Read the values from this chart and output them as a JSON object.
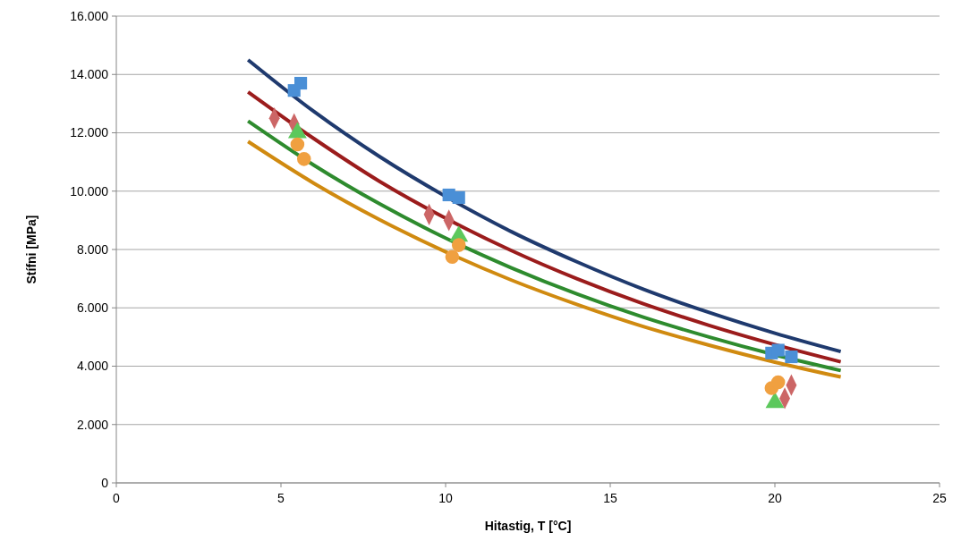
{
  "chart_data": {
    "type": "scatter",
    "xlabel": "Hitastig, T [°C]",
    "ylabel": "Stífni [MPa]",
    "xlim": [
      0,
      25
    ],
    "xticks": [
      0,
      5,
      10,
      15,
      20,
      25
    ],
    "ylim": [
      0,
      16000
    ],
    "yticks": [
      0,
      {
        "value": 2000,
        "label": "2.000"
      },
      {
        "value": 4000,
        "label": "4.000"
      },
      {
        "value": 6000,
        "label": "6.000"
      },
      {
        "value": 8000,
        "label": "8.000"
      },
      {
        "value": 10000,
        "label": "10.000"
      },
      {
        "value": 12000,
        "label": "12.000"
      },
      {
        "value": 14000,
        "label": "14.000"
      },
      {
        "value": 16000,
        "label": "16.000"
      }
    ],
    "grid": "y",
    "series": [
      {
        "type": "line",
        "color": "#1f3a6e",
        "marker": "none",
        "x": [
          4,
          6,
          8,
          10,
          12,
          14,
          16,
          18,
          20,
          22
        ],
        "values": [
          14500,
          12730,
          11180,
          9820,
          8610,
          7570,
          6640,
          5840,
          5130,
          4500
        ]
      },
      {
        "type": "line",
        "color": "#9b1c1c",
        "marker": "none",
        "x": [
          4,
          6,
          8,
          10,
          12,
          14,
          16,
          18,
          20,
          22
        ],
        "values": [
          13400,
          11800,
          10330,
          9070,
          7960,
          6990,
          6140,
          5400,
          4740,
          4150
        ]
      },
      {
        "type": "line",
        "color": "#2e8b2e",
        "marker": "none",
        "x": [
          4,
          6,
          8,
          10,
          12,
          14,
          16,
          18,
          20,
          22
        ],
        "values": [
          12400,
          10890,
          9560,
          8390,
          7370,
          6470,
          5680,
          5000,
          4390,
          3850
        ]
      },
      {
        "type": "line",
        "color": "#d08a10",
        "marker": "none",
        "x": [
          4,
          6,
          8,
          10,
          12,
          14,
          16,
          18,
          20,
          22
        ],
        "values": [
          11700,
          10270,
          9020,
          7920,
          6950,
          6110,
          5360,
          4720,
          4140,
          3630
        ]
      },
      {
        "color": "#4a8fd6",
        "marker": "square",
        "x": [
          5.4,
          5.6,
          10.1,
          10.4,
          19.9,
          20.1,
          20.5
        ],
        "values": [
          13450,
          13700,
          9870,
          9780,
          4450,
          4550,
          4320
        ]
      },
      {
        "color": "#cc6666",
        "marker": "diamond",
        "x": [
          4.8,
          5.4,
          9.5,
          10.1,
          20.5,
          20.3
        ],
        "values": [
          12500,
          12300,
          9200,
          9000,
          3350,
          2900
        ]
      },
      {
        "color": "#5cc85c",
        "marker": "triangle",
        "x": [
          5.5,
          10.4,
          20.0
        ],
        "values": [
          12000,
          8450,
          2750
        ]
      },
      {
        "color": "#f0a040",
        "marker": "circle",
        "x": [
          5.5,
          5.7,
          10.4,
          10.2,
          19.9,
          20.1
        ],
        "values": [
          11600,
          11100,
          8150,
          7750,
          3250,
          3450
        ]
      }
    ]
  }
}
